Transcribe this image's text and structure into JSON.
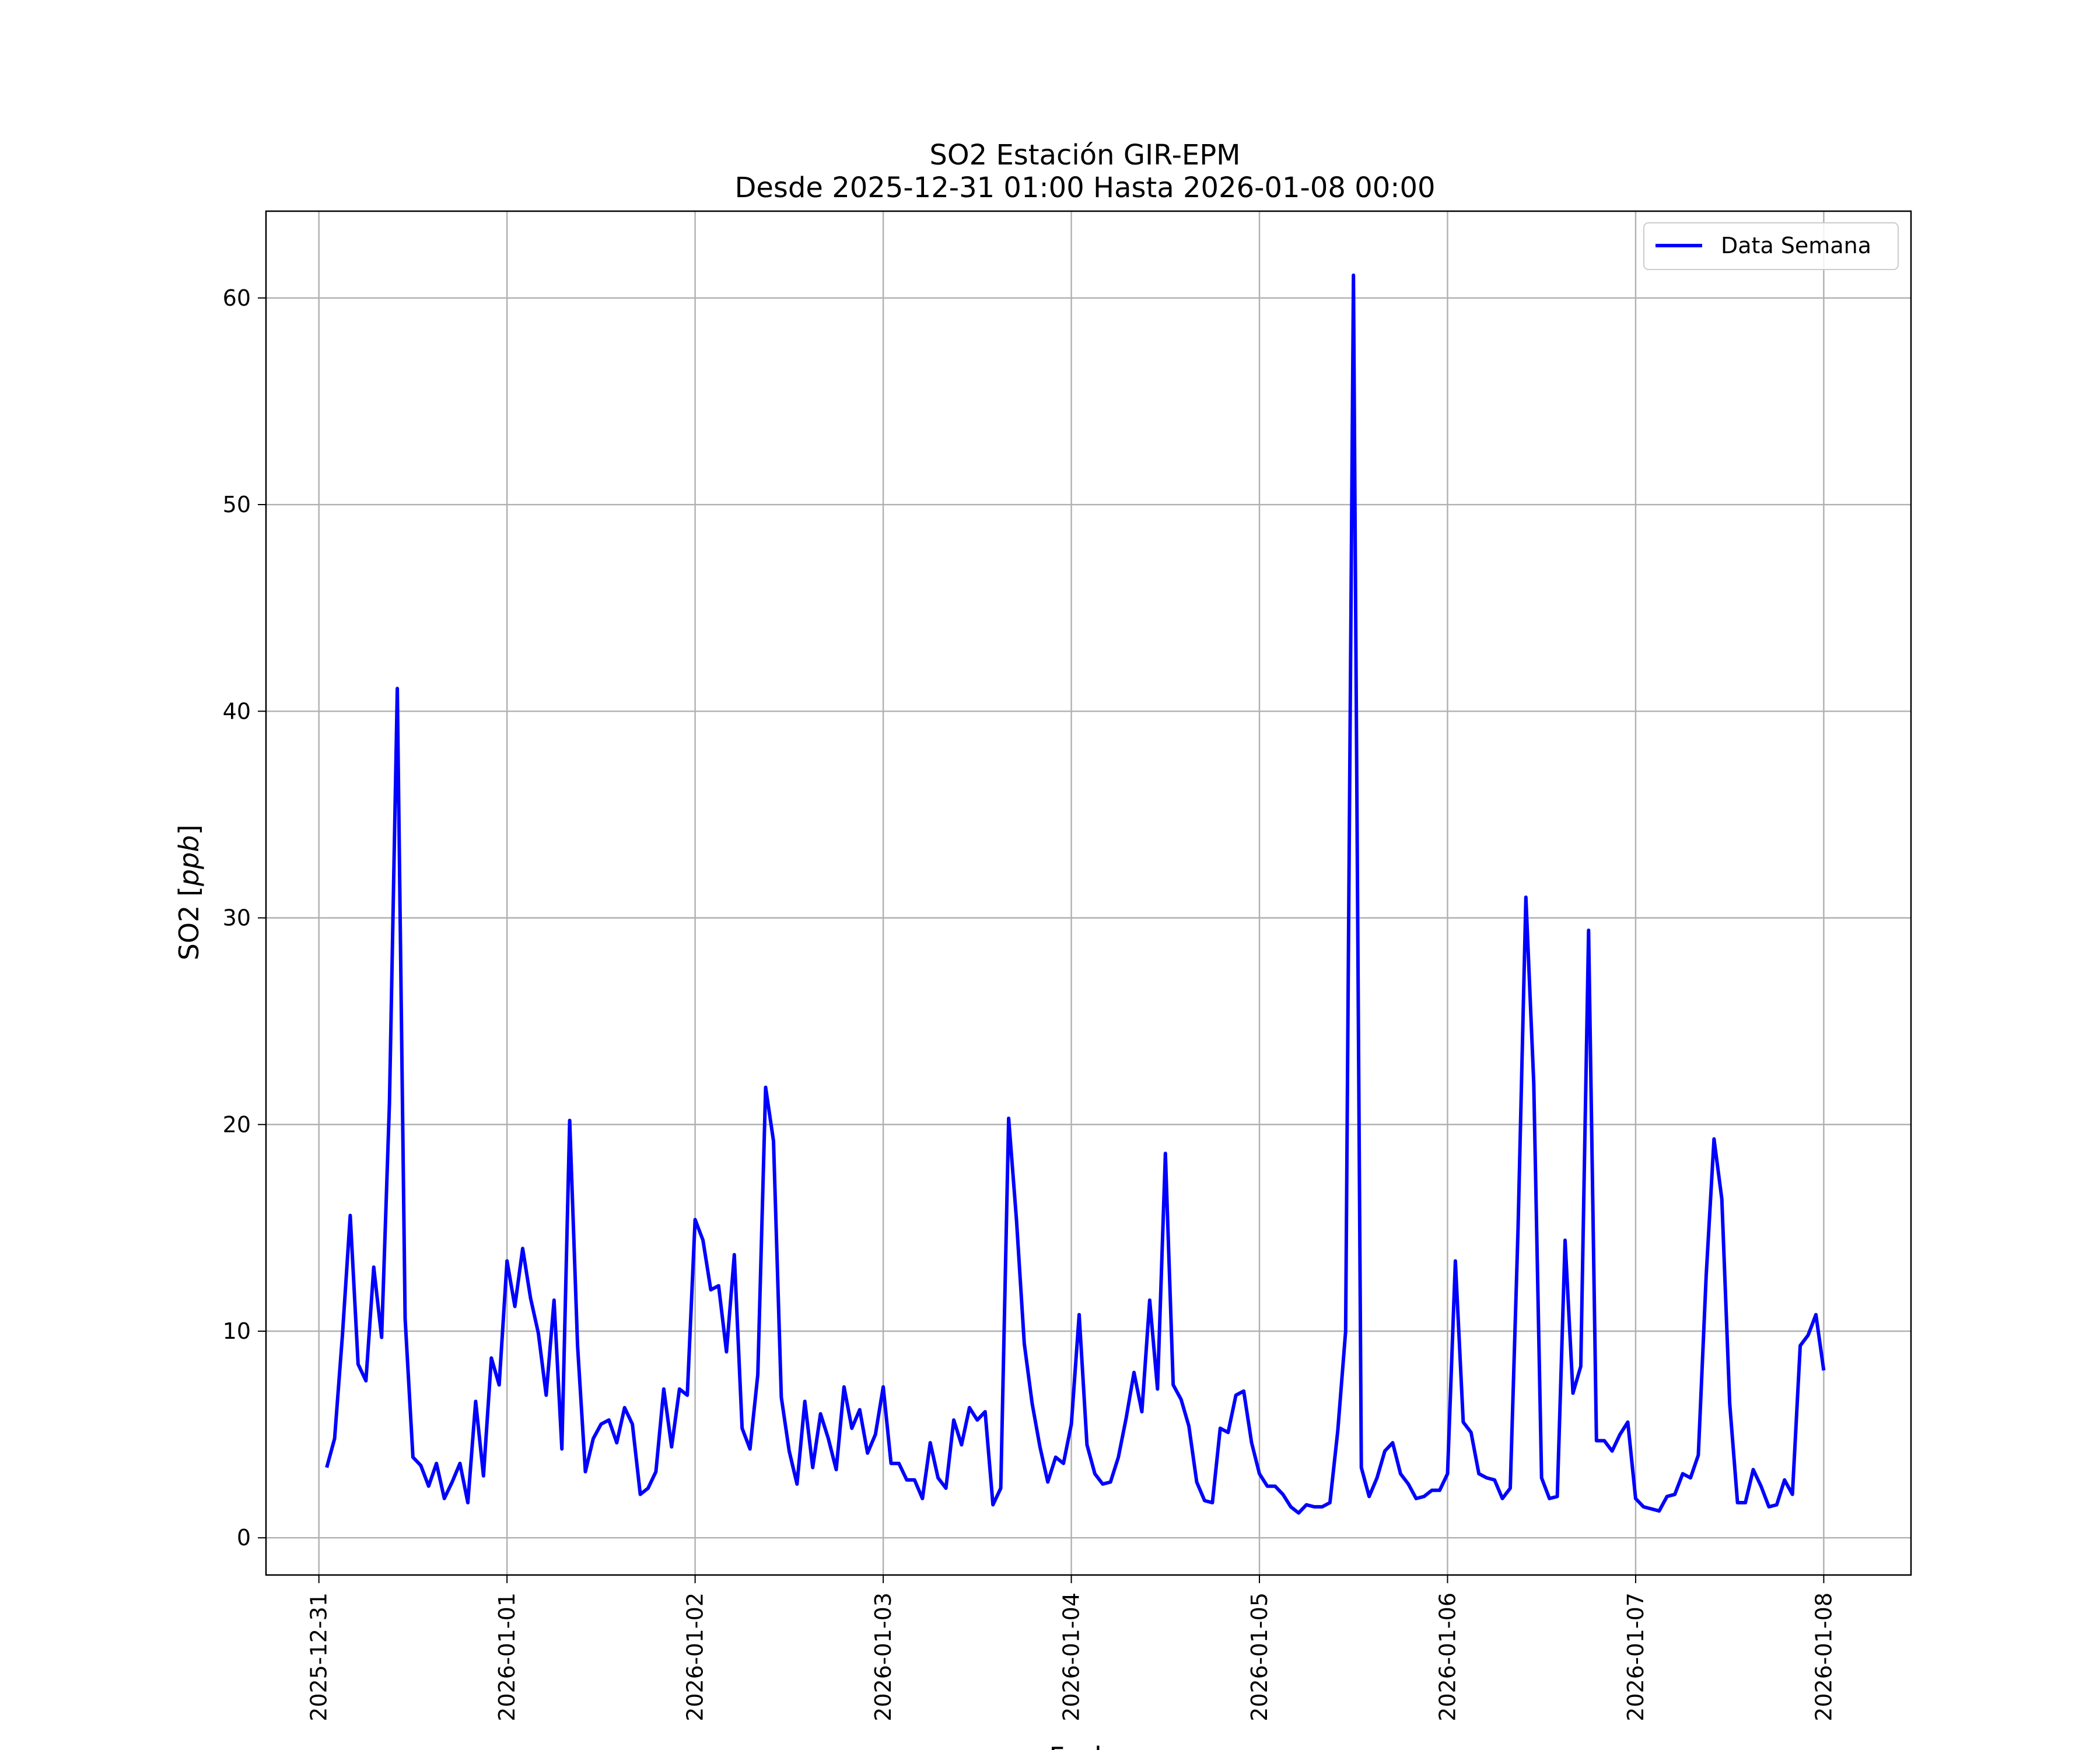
{
  "chart_data": {
    "type": "line",
    "title": "SO2 Estación GIR-EPM",
    "subtitle": "Desde 2025-12-31 01:00 Hasta 2026-01-08 00:00",
    "xlabel": "Fecha",
    "ylabel": "SO2 [ppb]",
    "grid": true,
    "legend_position": "top-right",
    "line_color": "#0000ff",
    "xlim": [
      "2025-12-30 17:15",
      "2026-01-08 11:08"
    ],
    "ylim": [
      -1.8,
      64.2
    ],
    "x_ticks": [
      "2025-12-31",
      "2026-01-01",
      "2026-01-02",
      "2026-01-03",
      "2026-01-04",
      "2026-01-05",
      "2026-01-06",
      "2026-01-07",
      "2026-01-08"
    ],
    "y_ticks": [
      0,
      10,
      20,
      30,
      40,
      50,
      60
    ],
    "series": [
      {
        "name": "Data Semana",
        "x": [
          "2025-12-31 01:00",
          "2025-12-31 02:00",
          "2025-12-31 03:00",
          "2025-12-31 04:00",
          "2025-12-31 05:00",
          "2025-12-31 06:00",
          "2025-12-31 07:00",
          "2025-12-31 08:00",
          "2025-12-31 09:00",
          "2025-12-31 10:00",
          "2025-12-31 11:00",
          "2025-12-31 12:00",
          "2025-12-31 13:00",
          "2025-12-31 14:00",
          "2025-12-31 15:00",
          "2025-12-31 16:00",
          "2025-12-31 17:00",
          "2025-12-31 18:00",
          "2025-12-31 19:00",
          "2025-12-31 20:00",
          "2025-12-31 21:00",
          "2025-12-31 22:00",
          "2025-12-31 23:00",
          "2026-01-01 00:00",
          "2026-01-01 01:00",
          "2026-01-01 02:00",
          "2026-01-01 03:00",
          "2026-01-01 04:00",
          "2026-01-01 05:00",
          "2026-01-01 06:00",
          "2026-01-01 07:00",
          "2026-01-01 08:00",
          "2026-01-01 09:00",
          "2026-01-01 10:00",
          "2026-01-01 11:00",
          "2026-01-01 12:00",
          "2026-01-01 13:00",
          "2026-01-01 14:00",
          "2026-01-01 15:00",
          "2026-01-01 16:00",
          "2026-01-01 17:00",
          "2026-01-01 18:00",
          "2026-01-01 19:00",
          "2026-01-01 20:00",
          "2026-01-01 21:00",
          "2026-01-01 22:00",
          "2026-01-01 23:00",
          "2026-01-02 00:00",
          "2026-01-02 01:00",
          "2026-01-02 02:00",
          "2026-01-02 03:00",
          "2026-01-02 04:00",
          "2026-01-02 05:00",
          "2026-01-02 06:00",
          "2026-01-02 07:00",
          "2026-01-02 08:00",
          "2026-01-02 09:00",
          "2026-01-02 10:00",
          "2026-01-02 11:00",
          "2026-01-02 12:00",
          "2026-01-02 13:00",
          "2026-01-02 14:00",
          "2026-01-02 15:00",
          "2026-01-02 16:00",
          "2026-01-02 17:00",
          "2026-01-02 18:00",
          "2026-01-02 19:00",
          "2026-01-02 20:00",
          "2026-01-02 21:00",
          "2026-01-02 22:00",
          "2026-01-02 23:00",
          "2026-01-03 00:00",
          "2026-01-03 01:00",
          "2026-01-03 02:00",
          "2026-01-03 03:00",
          "2026-01-03 04:00",
          "2026-01-03 05:00",
          "2026-01-03 06:00",
          "2026-01-03 07:00",
          "2026-01-03 08:00",
          "2026-01-03 09:00",
          "2026-01-03 10:00",
          "2026-01-03 11:00",
          "2026-01-03 12:00",
          "2026-01-03 13:00",
          "2026-01-03 14:00",
          "2026-01-03 15:00",
          "2026-01-03 16:00",
          "2026-01-03 17:00",
          "2026-01-03 18:00",
          "2026-01-03 19:00",
          "2026-01-03 20:00",
          "2026-01-03 21:00",
          "2026-01-03 22:00",
          "2026-01-03 23:00",
          "2026-01-04 00:00",
          "2026-01-04 01:00",
          "2026-01-04 02:00",
          "2026-01-04 03:00",
          "2026-01-04 04:00",
          "2026-01-04 05:00",
          "2026-01-04 06:00",
          "2026-01-04 07:00",
          "2026-01-04 08:00",
          "2026-01-04 09:00",
          "2026-01-04 10:00",
          "2026-01-04 11:00",
          "2026-01-04 12:00",
          "2026-01-04 13:00",
          "2026-01-04 14:00",
          "2026-01-04 15:00",
          "2026-01-04 16:00",
          "2026-01-04 17:00",
          "2026-01-04 18:00",
          "2026-01-04 19:00",
          "2026-01-04 20:00",
          "2026-01-04 21:00",
          "2026-01-04 22:00",
          "2026-01-04 23:00",
          "2026-01-05 00:00",
          "2026-01-05 01:00",
          "2026-01-05 02:00",
          "2026-01-05 03:00",
          "2026-01-05 04:00",
          "2026-01-05 05:00",
          "2026-01-05 06:00",
          "2026-01-05 07:00",
          "2026-01-05 08:00",
          "2026-01-05 09:00",
          "2026-01-05 10:00",
          "2026-01-05 11:00",
          "2026-01-05 12:00",
          "2026-01-05 13:00",
          "2026-01-05 14:00",
          "2026-01-05 15:00",
          "2026-01-05 16:00",
          "2026-01-05 17:00",
          "2026-01-05 18:00",
          "2026-01-05 19:00",
          "2026-01-05 20:00",
          "2026-01-05 21:00",
          "2026-01-05 22:00",
          "2026-01-05 23:00",
          "2026-01-06 00:00",
          "2026-01-06 01:00",
          "2026-01-06 02:00",
          "2026-01-06 03:00",
          "2026-01-06 04:00",
          "2026-01-06 05:00",
          "2026-01-06 06:00",
          "2026-01-06 07:00",
          "2026-01-06 08:00",
          "2026-01-06 09:00",
          "2026-01-06 10:00",
          "2026-01-06 11:00",
          "2026-01-06 12:00",
          "2026-01-06 13:00",
          "2026-01-06 14:00",
          "2026-01-06 15:00",
          "2026-01-06 16:00",
          "2026-01-06 17:00",
          "2026-01-06 18:00",
          "2026-01-06 19:00",
          "2026-01-06 20:00",
          "2026-01-06 21:00",
          "2026-01-06 22:00",
          "2026-01-06 23:00",
          "2026-01-07 00:00",
          "2026-01-07 01:00",
          "2026-01-07 02:00",
          "2026-01-07 03:00",
          "2026-01-07 04:00",
          "2026-01-07 05:00",
          "2026-01-07 06:00",
          "2026-01-07 07:00",
          "2026-01-07 08:00",
          "2026-01-07 09:00",
          "2026-01-07 10:00",
          "2026-01-07 11:00",
          "2026-01-07 12:00",
          "2026-01-07 13:00",
          "2026-01-07 14:00",
          "2026-01-07 15:00",
          "2026-01-07 16:00",
          "2026-01-07 17:00",
          "2026-01-07 18:00",
          "2026-01-07 19:00",
          "2026-01-07 20:00",
          "2026-01-07 21:00",
          "2026-01-07 22:00",
          "2026-01-07 23:00",
          "2026-01-08 00:00"
        ],
        "values": [
          3.4,
          4.8,
          9.8,
          15.6,
          8.4,
          7.6,
          13.1,
          9.7,
          21.0,
          41.1,
          10.6,
          3.9,
          3.5,
          2.5,
          3.6,
          1.9,
          2.7,
          3.6,
          1.7,
          6.6,
          3.0,
          8.7,
          7.4,
          13.4,
          11.2,
          14.0,
          11.6,
          9.9,
          6.9,
          11.5,
          4.3,
          20.2,
          9.3,
          3.2,
          4.8,
          5.5,
          5.7,
          4.6,
          6.3,
          5.5,
          2.1,
          2.4,
          3.2,
          7.2,
          4.4,
          7.2,
          6.9,
          15.4,
          14.4,
          12.0,
          12.2,
          9.0,
          13.7,
          5.3,
          4.3,
          7.9,
          21.8,
          19.2,
          6.8,
          4.2,
          2.6,
          6.6,
          3.4,
          6.0,
          4.8,
          3.3,
          7.3,
          5.3,
          6.2,
          4.1,
          5.0,
          7.3,
          3.6,
          3.6,
          2.8,
          2.8,
          1.9,
          4.6,
          2.9,
          2.4,
          5.7,
          4.5,
          6.3,
          5.7,
          6.1,
          1.6,
          2.4,
          20.3,
          15.4,
          9.4,
          6.5,
          4.4,
          2.7,
          3.9,
          3.6,
          5.5,
          10.8,
          4.5,
          3.1,
          2.6,
          2.7,
          3.9,
          5.8,
          8.0,
          6.1,
          11.5,
          7.2,
          18.6,
          7.4,
          6.7,
          5.4,
          2.7,
          1.8,
          1.7,
          5.3,
          5.1,
          6.9,
          7.1,
          4.6,
          3.1,
          2.5,
          2.5,
          2.1,
          1.5,
          1.2,
          1.6,
          1.5,
          1.5,
          1.7,
          5.2,
          10.0,
          61.1,
          3.4,
          2.0,
          2.9,
          4.2,
          4.6,
          3.1,
          2.6,
          1.9,
          2.0,
          2.3,
          2.3,
          3.1,
          13.4,
          5.6,
          5.1,
          3.1,
          2.9,
          2.8,
          1.9,
          2.4,
          15.0,
          31.0,
          22.0,
          2.9,
          1.9,
          2.0,
          14.4,
          7.0,
          8.3,
          29.4,
          4.7,
          4.7,
          4.2,
          5.0,
          5.6,
          1.9,
          1.5,
          1.4,
          1.3,
          2.0,
          2.1,
          3.1,
          2.9,
          4.0,
          12.7,
          19.3,
          16.4,
          6.5,
          1.7,
          1.7,
          3.3,
          2.5,
          1.5,
          1.6,
          2.8,
          2.1,
          9.3,
          9.8,
          10.8,
          8.1
        ]
      }
    ]
  }
}
